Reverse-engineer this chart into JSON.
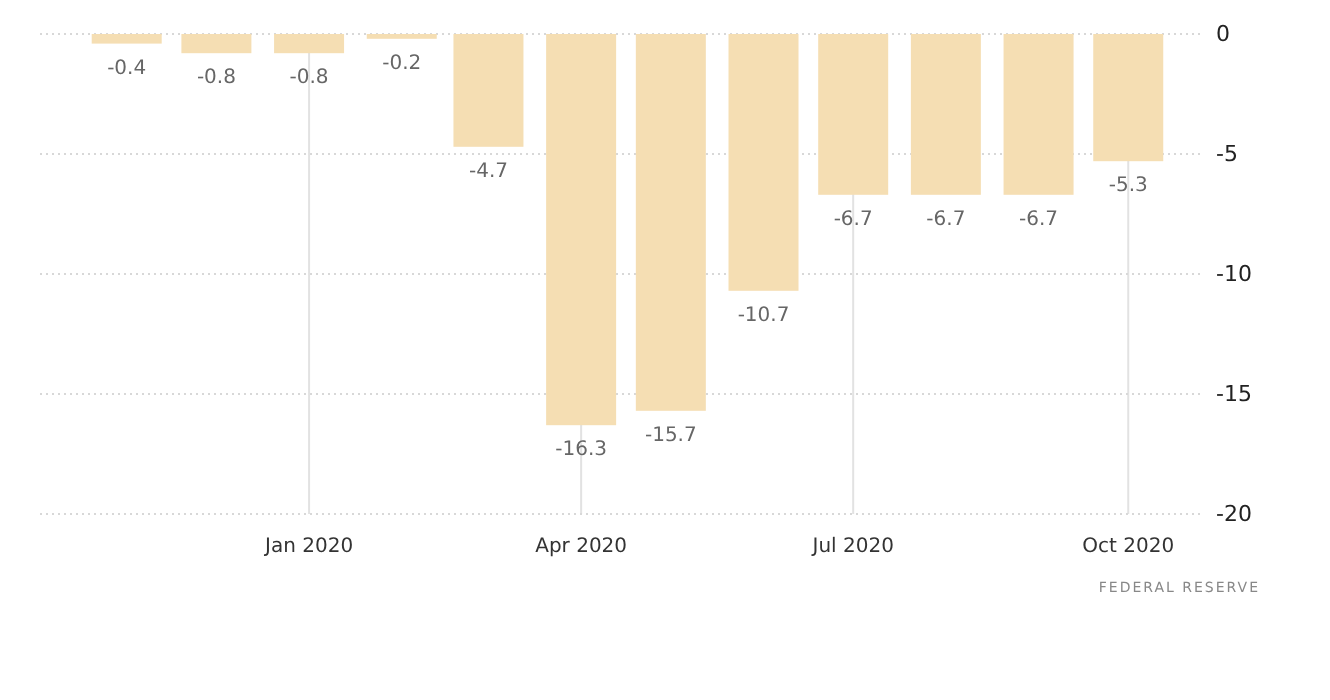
{
  "chart_data": {
    "type": "bar",
    "x": [
      "2019-11",
      "2019-12",
      "2020-01",
      "2020-02",
      "2020-03",
      "2020-04",
      "2020-05",
      "2020-06",
      "2020-07",
      "2020-08",
      "2020-09",
      "2020-10"
    ],
    "values": [
      -0.4,
      -0.8,
      -0.8,
      -0.2,
      -4.7,
      -16.3,
      -15.7,
      -10.7,
      -6.7,
      -6.7,
      -6.7,
      -5.3
    ],
    "color": "#f5deb3",
    "data_labels": true,
    "xlim": [
      "2019-10-03",
      "2020-10-25"
    ],
    "xticks": [
      {
        "value": "2020-01",
        "label": "Jan 2020"
      },
      {
        "value": "2020-04",
        "label": "Apr 2020"
      },
      {
        "value": "2020-07",
        "label": "Jul 2020"
      },
      {
        "value": "2020-10",
        "label": "Oct 2020"
      }
    ],
    "ylim": [
      -20,
      0
    ],
    "yticks": [
      0,
      -5,
      -10,
      -15,
      -20
    ],
    "grid": true,
    "annotations": [
      "FEDERAL RESERVE"
    ]
  }
}
